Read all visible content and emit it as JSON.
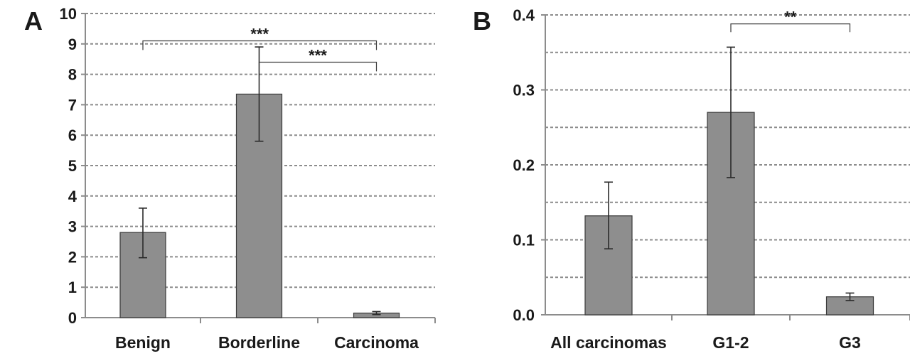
{
  "chart_data": [
    {
      "type": "bar",
      "panel_label": "A",
      "categories": [
        "Benign",
        "Borderline",
        "Carcinoma"
      ],
      "values": [
        2.8,
        7.35,
        0.15
      ],
      "error_low": [
        1.97,
        5.8,
        0.1
      ],
      "error_high": [
        3.6,
        8.9,
        0.2
      ],
      "ylim": [
        0,
        10
      ],
      "yticks": [
        "0",
        "1",
        "2",
        "3",
        "4",
        "5",
        "6",
        "7",
        "8",
        "9",
        "10"
      ],
      "grid": true,
      "significance": [
        {
          "from": 0,
          "to": 2,
          "label": "***",
          "y_top": 9.1,
          "y_drop": 8.8
        },
        {
          "from": 1,
          "to": 2,
          "label": "***",
          "y_top": 8.4,
          "y_drop": 8.1
        }
      ]
    },
    {
      "type": "bar",
      "panel_label": "B",
      "categories": [
        "All carcinomas",
        "G1-2",
        "G3"
      ],
      "values": [
        0.132,
        0.27,
        0.024
      ],
      "error_low": [
        0.088,
        0.183,
        0.019
      ],
      "error_high": [
        0.177,
        0.357,
        0.029
      ],
      "ylim": [
        0,
        0.4
      ],
      "yticks": [
        "0.0",
        "0.1",
        "0.2",
        "0.3",
        "0.4"
      ],
      "grid_step": 0.05,
      "grid": true,
      "significance": [
        {
          "from": 1,
          "to": 2,
          "label": "**",
          "y_top": 0.388,
          "y_drop": 0.377
        }
      ]
    }
  ]
}
